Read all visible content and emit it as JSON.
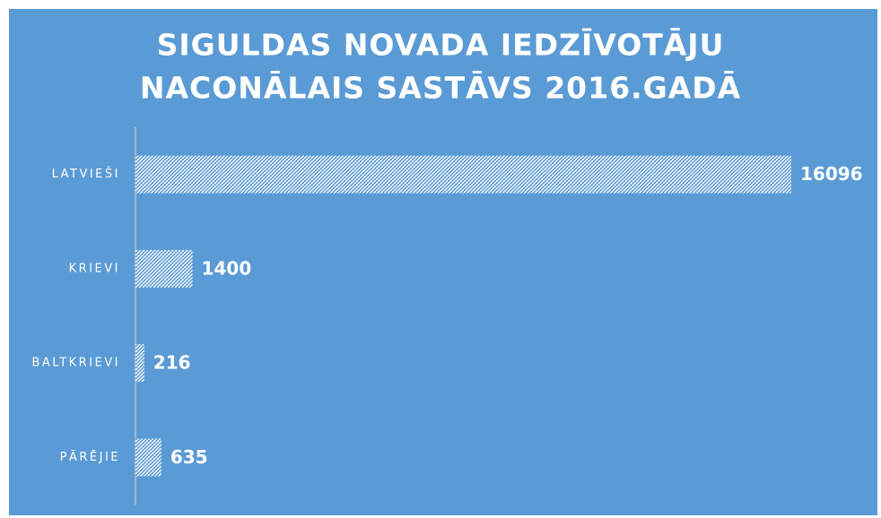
{
  "chart_data": {
    "type": "bar",
    "orientation": "horizontal",
    "title": [
      "SIGULDAS NOVADA IEDZĪVOTĀJU",
      "NACONĀLAIS SASTĀVS 2016.GADĀ"
    ],
    "categories": [
      "LATVIEŠI",
      "KRIEVI",
      "BALTKRIEVI",
      "PĀRĒJIE"
    ],
    "values": [
      16096,
      1400,
      216,
      635
    ],
    "color": "#ffffff",
    "background": "#5b9bd5"
  }
}
